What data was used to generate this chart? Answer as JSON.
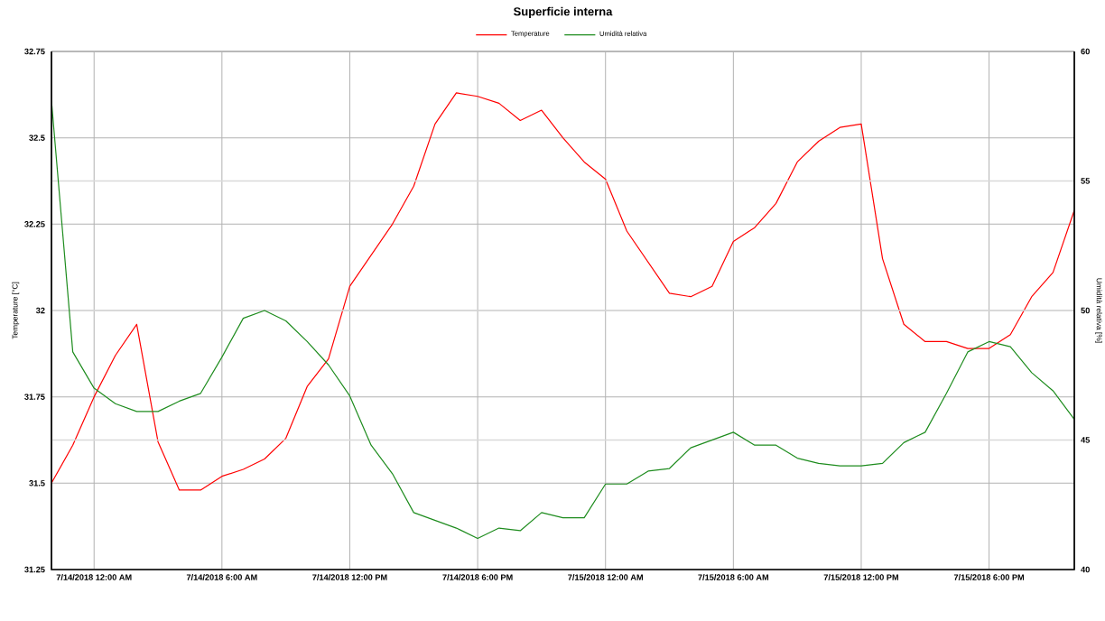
{
  "chart_data": {
    "type": "line",
    "title": "Superficie interna",
    "ylabel": "Temperature [°C]",
    "y2label": "Umidità relativa [%]",
    "x": [
      "2018-07-13T22:00",
      "2018-07-13T23:00",
      "2018-07-14T00:00",
      "2018-07-14T01:00",
      "2018-07-14T02:00",
      "2018-07-14T03:00",
      "2018-07-14T04:00",
      "2018-07-14T05:00",
      "2018-07-14T06:00",
      "2018-07-14T07:00",
      "2018-07-14T08:00",
      "2018-07-14T09:00",
      "2018-07-14T10:00",
      "2018-07-14T11:00",
      "2018-07-14T12:00",
      "2018-07-14T13:00",
      "2018-07-14T14:00",
      "2018-07-14T15:00",
      "2018-07-14T16:00",
      "2018-07-14T17:00",
      "2018-07-14T18:00",
      "2018-07-14T19:00",
      "2018-07-14T20:00",
      "2018-07-14T21:00",
      "2018-07-14T22:00",
      "2018-07-14T23:00",
      "2018-07-15T00:00",
      "2018-07-15T01:00",
      "2018-07-15T02:00",
      "2018-07-15T03:00",
      "2018-07-15T04:00",
      "2018-07-15T05:00",
      "2018-07-15T06:00",
      "2018-07-15T07:00",
      "2018-07-15T08:00",
      "2018-07-15T09:00",
      "2018-07-15T10:00",
      "2018-07-15T11:00",
      "2018-07-15T12:00",
      "2018-07-15T13:00",
      "2018-07-15T14:00",
      "2018-07-15T15:00",
      "2018-07-15T16:00",
      "2018-07-15T17:00",
      "2018-07-15T18:00",
      "2018-07-15T19:00",
      "2018-07-15T20:00",
      "2018-07-15T21:00",
      "2018-07-15T22:00"
    ],
    "series": [
      {
        "name": "Temperature",
        "color": "#ff0000",
        "values": [
          31.5,
          31.61,
          31.75,
          31.87,
          31.96,
          31.62,
          31.48,
          31.48,
          31.52,
          31.54,
          31.57,
          31.63,
          31.78,
          31.86,
          32.07,
          32.16,
          32.25,
          32.36,
          32.54,
          32.63,
          32.62,
          32.6,
          32.55,
          32.58,
          32.5,
          32.43,
          32.38,
          32.23,
          32.14,
          32.05,
          32.04,
          32.07,
          32.2,
          32.24,
          32.31,
          32.43,
          32.49,
          32.53,
          32.54,
          32.15,
          31.96,
          31.91,
          31.91,
          31.89,
          31.89,
          31.93,
          32.04,
          32.11,
          32.29
        ]
      },
      {
        "name": "Umidità relativa",
        "color": "#1e8c1e",
        "axis": "y2",
        "values": [
          58.1,
          48.4,
          47.0,
          46.4,
          46.1,
          46.1,
          46.5,
          46.8,
          48.2,
          49.7,
          50.0,
          49.6,
          48.8,
          47.9,
          46.7,
          44.8,
          43.7,
          42.2,
          41.9,
          41.6,
          41.2,
          41.6,
          41.5,
          42.2,
          42.0,
          42.0,
          43.3,
          43.3,
          43.8,
          43.9,
          44.7,
          45.0,
          45.3,
          44.8,
          44.8,
          44.3,
          44.1,
          44.0,
          44.0,
          44.1,
          44.9,
          45.3,
          46.8,
          48.4,
          48.8,
          48.6,
          47.6,
          46.9,
          45.8
        ]
      }
    ],
    "xlim": [
      "2018-07-13T22:00",
      "2018-07-15T22:00"
    ],
    "xticks": [
      {
        "value": "2018-07-14T00:00",
        "label": "7/14/2018 12:00 AM"
      },
      {
        "value": "2018-07-14T06:00",
        "label": "7/14/2018 6:00 AM"
      },
      {
        "value": "2018-07-14T12:00",
        "label": "7/14/2018 12:00 PM"
      },
      {
        "value": "2018-07-14T18:00",
        "label": "7/14/2018 6:00 PM"
      },
      {
        "value": "2018-07-15T00:00",
        "label": "7/15/2018 12:00 AM"
      },
      {
        "value": "2018-07-15T06:00",
        "label": "7/15/2018 6:00 AM"
      },
      {
        "value": "2018-07-15T12:00",
        "label": "7/15/2018 12:00 PM"
      },
      {
        "value": "2018-07-15T18:00",
        "label": "7/15/2018 6:00 PM"
      }
    ],
    "ylim": [
      31.25,
      32.75
    ],
    "yticks": [
      31.25,
      31.5,
      31.75,
      32,
      32.25,
      32.5,
      32.75
    ],
    "y2lim": [
      40,
      60
    ],
    "y2ticks": [
      40,
      45,
      50,
      55,
      60
    ],
    "grid": true,
    "legend": "top"
  }
}
